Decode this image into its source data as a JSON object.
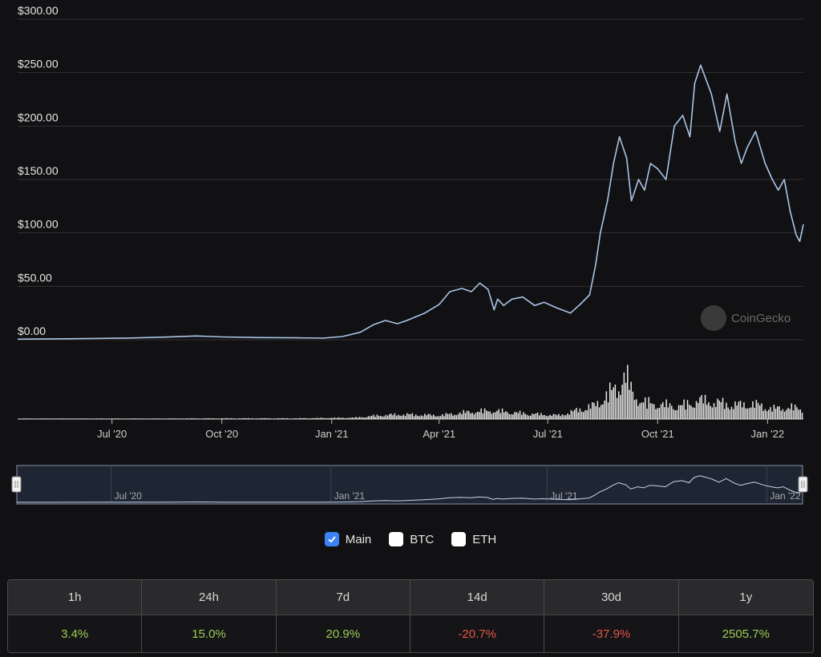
{
  "chart_data": {
    "type": "line",
    "y_ticks": [
      "$300.00",
      "$250.00",
      "$200.00",
      "$150.00",
      "$100.00",
      "$50.00",
      "$0.00"
    ],
    "y_tick_values": [
      300,
      250,
      200,
      150,
      100,
      50,
      0
    ],
    "ylim": [
      0,
      300
    ],
    "x_ticks": [
      "Jul '20",
      "Oct '20",
      "Jan '21",
      "Apr '21",
      "Jul '21",
      "Oct '21",
      "Jan '22"
    ],
    "x_tick_values": [
      "2020-07-01",
      "2020-10-01",
      "2021-01-01",
      "2021-04-01",
      "2021-07-01",
      "2021-10-01",
      "2022-01-01"
    ],
    "xlim": [
      "2020-04-13",
      "2022-01-31"
    ],
    "grid": true,
    "line_color": "#aac4e6",
    "price_series": {
      "x": [
        "2020-04-13",
        "2020-05-15",
        "2020-06-15",
        "2020-07-15",
        "2020-08-15",
        "2020-09-10",
        "2020-10-01",
        "2020-11-01",
        "2020-12-01",
        "2020-12-25",
        "2021-01-10",
        "2021-01-25",
        "2021-02-05",
        "2021-02-15",
        "2021-02-25",
        "2021-03-05",
        "2021-03-20",
        "2021-04-01",
        "2021-04-10",
        "2021-04-20",
        "2021-04-28",
        "2021-05-05",
        "2021-05-12",
        "2021-05-17",
        "2021-05-20",
        "2021-05-25",
        "2021-06-01",
        "2021-06-10",
        "2021-06-20",
        "2021-06-28",
        "2021-07-08",
        "2021-07-20",
        "2021-07-28",
        "2021-08-05",
        "2021-08-10",
        "2021-08-14",
        "2021-08-20",
        "2021-08-25",
        "2021-08-30",
        "2021-09-05",
        "2021-09-09",
        "2021-09-15",
        "2021-09-20",
        "2021-09-25",
        "2021-10-01",
        "2021-10-08",
        "2021-10-15",
        "2021-10-22",
        "2021-10-28",
        "2021-11-01",
        "2021-11-06",
        "2021-11-10",
        "2021-11-15",
        "2021-11-22",
        "2021-11-28",
        "2021-12-05",
        "2021-12-10",
        "2021-12-15",
        "2021-12-22",
        "2021-12-30",
        "2022-01-05",
        "2022-01-10",
        "2022-01-15",
        "2022-01-20",
        "2022-01-25",
        "2022-01-28",
        "2022-01-31"
      ],
      "y": [
        0.5,
        0.8,
        1.2,
        1.6,
        2.5,
        3.5,
        2.6,
        2.0,
        1.8,
        1.5,
        3.0,
        7.0,
        14.0,
        18.0,
        15.0,
        18.0,
        25.0,
        33.0,
        45.0,
        48.0,
        45.0,
        53.0,
        47.0,
        28.0,
        38.0,
        32.0,
        38.0,
        40.0,
        32.0,
        35.0,
        30.0,
        25.0,
        33.0,
        42.0,
        70.0,
        100.0,
        130.0,
        165.0,
        190.0,
        170.0,
        130.0,
        150.0,
        140.0,
        165.0,
        160.0,
        150.0,
        200.0,
        210.0,
        190.0,
        240.0,
        257.0,
        245.0,
        230.0,
        195.0,
        230.0,
        185.0,
        165.0,
        180.0,
        195.0,
        165.0,
        150.0,
        140.0,
        150.0,
        120.0,
        98.0,
        92.0,
        108.0
      ]
    },
    "volume_series": {
      "x": [
        "2020-04-13",
        "2020-06-01",
        "2020-08-01",
        "2020-10-01",
        "2020-12-01",
        "2021-01-20",
        "2021-02-10",
        "2021-03-01",
        "2021-04-01",
        "2021-04-25",
        "2021-05-15",
        "2021-06-10",
        "2021-07-10",
        "2021-08-10",
        "2021-08-20",
        "2021-08-28",
        "2021-09-03",
        "2021-09-10",
        "2021-09-20",
        "2021-10-05",
        "2021-10-20",
        "2021-11-05",
        "2021-11-20",
        "2021-12-05",
        "2021-12-20",
        "2022-01-05",
        "2022-01-20",
        "2022-01-31"
      ],
      "relative": [
        0.01,
        0.01,
        0.01,
        0.015,
        0.015,
        0.03,
        0.08,
        0.1,
        0.08,
        0.15,
        0.18,
        0.12,
        0.08,
        0.3,
        0.55,
        0.65,
        1.0,
        0.5,
        0.35,
        0.3,
        0.28,
        0.4,
        0.35,
        0.3,
        0.32,
        0.22,
        0.25,
        0.2
      ]
    },
    "navigator": {
      "x_ticks": [
        "Jul '20",
        "Jan '21",
        "Jul '21",
        "Jan '22"
      ],
      "x_tick_values": [
        "2020-07-01",
        "2021-01-01",
        "2021-07-01",
        "2022-01-01"
      ]
    },
    "watermark": "CoinGecko"
  },
  "legend": [
    {
      "label": "Main",
      "checked": true
    },
    {
      "label": "BTC",
      "checked": false
    },
    {
      "label": "ETH",
      "checked": false
    }
  ],
  "performance": {
    "headers": [
      "1h",
      "24h",
      "7d",
      "14d",
      "30d",
      "1y"
    ],
    "values": [
      "3.4%",
      "15.0%",
      "20.9%",
      "-20.7%",
      "-37.9%",
      "2505.7%"
    ]
  }
}
